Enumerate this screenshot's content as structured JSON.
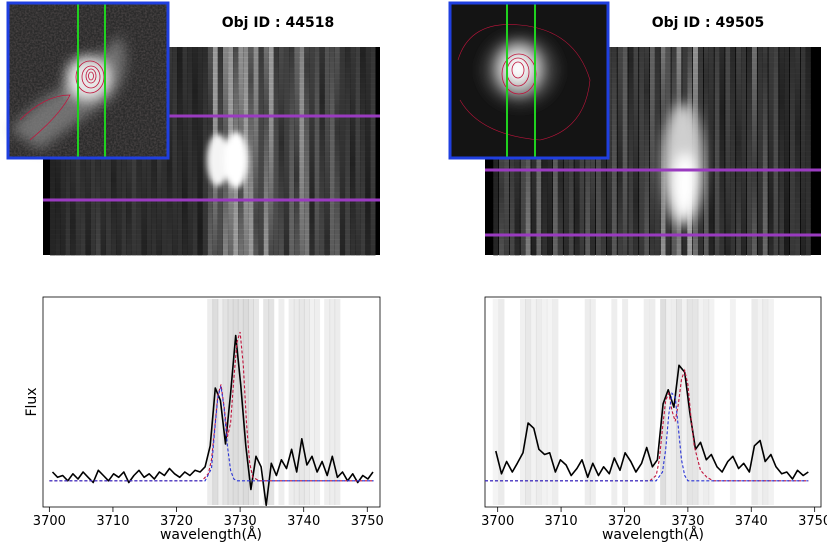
{
  "figure": {
    "ylabel": "Flux",
    "xlabel": "wavelength(Å)"
  },
  "colors": {
    "data_line": "#000000",
    "fit_total": "#c0143c",
    "fit_component": "#2b35d6",
    "aperture_lines": "#9a3bc0",
    "slit_lines": "#1fd11f",
    "inset_border": "#1f3fe0",
    "posterior_draws": "#b8b8b8"
  },
  "chart_data": [
    {
      "type": "line",
      "title": "Obj ID : 44518",
      "xlabel": "wavelength(Å)",
      "ylabel": "Flux",
      "xlim": [
        3699,
        3752
      ],
      "ylim": [
        -0.15,
        1.05
      ],
      "xticks": [
        3700,
        3710,
        3720,
        3730,
        3740,
        3750
      ],
      "grid": false,
      "series": [
        {
          "role": "data",
          "x": [
            3700.5,
            3701.3,
            3702.1,
            3702.9,
            3703.7,
            3704.5,
            3705.3,
            3706.1,
            3706.9,
            3707.7,
            3708.5,
            3709.3,
            3710.1,
            3710.9,
            3711.7,
            3712.5,
            3713.3,
            3714.1,
            3714.9,
            3715.7,
            3716.5,
            3717.3,
            3718.1,
            3718.9,
            3719.7,
            3720.5,
            3721.3,
            3722.1,
            3722.9,
            3723.7,
            3724.5,
            3725.3,
            3726.1,
            3726.9,
            3727.7,
            3728.5,
            3729.3,
            3730.1,
            3730.9,
            3731.7,
            3732.5,
            3733.3,
            3734.1,
            3734.9,
            3735.7,
            3736.5,
            3737.3,
            3738.1,
            3738.9,
            3739.7,
            3740.5,
            3741.3,
            3742.1,
            3742.9,
            3743.7,
            3744.5,
            3745.3,
            3746.1,
            3746.9,
            3747.7,
            3748.5,
            3749.3,
            3750.1,
            3750.9
          ],
          "y": [
            0.05,
            0.02,
            0.03,
            0.0,
            0.04,
            0.01,
            0.05,
            0.02,
            -0.01,
            0.06,
            0.03,
            0.0,
            0.04,
            0.02,
            0.05,
            -0.01,
            0.03,
            0.06,
            0.02,
            0.04,
            0.01,
            0.05,
            0.03,
            0.07,
            0.04,
            0.02,
            0.05,
            0.03,
            0.06,
            0.05,
            0.08,
            0.2,
            0.53,
            0.46,
            0.21,
            0.5,
            0.83,
            0.55,
            0.2,
            -0.05,
            0.14,
            0.08,
            -0.14,
            0.1,
            0.03,
            0.12,
            0.07,
            0.18,
            0.05,
            0.24,
            0.09,
            0.14,
            0.05,
            0.11,
            0.03,
            0.14,
            0.02,
            0.05,
            0.0,
            0.04,
            -0.01,
            0.03,
            0.01,
            0.05
          ]
        },
        {
          "role": "fit-total",
          "x": [
            3700,
            3724,
            3725,
            3725.5,
            3726,
            3726.5,
            3727,
            3727.5,
            3728,
            3728.5,
            3729,
            3729.5,
            3730,
            3730.5,
            3731,
            3731.5,
            3732,
            3733,
            3751
          ],
          "y": [
            0.0,
            0.0,
            0.04,
            0.12,
            0.3,
            0.49,
            0.55,
            0.42,
            0.25,
            0.33,
            0.58,
            0.79,
            0.85,
            0.66,
            0.33,
            0.1,
            0.02,
            0.0,
            0.0
          ]
        },
        {
          "role": "fit-component",
          "x": [
            3700,
            3724.5,
            3725.5,
            3726,
            3726.5,
            3727,
            3727.5,
            3728,
            3728.5,
            3729,
            3729.5,
            3730,
            3751
          ],
          "y": [
            0.0,
            0.0,
            0.07,
            0.29,
            0.48,
            0.54,
            0.41,
            0.2,
            0.06,
            0.01,
            0.0,
            0.0,
            0.0
          ]
        }
      ]
    },
    {
      "type": "line",
      "title": "Obj ID : 49505",
      "xlabel": "wavelength(Å)",
      "xlim": [
        3698,
        3751
      ],
      "ylim": [
        -0.15,
        1.05
      ],
      "xticks": [
        3700,
        3710,
        3720,
        3730,
        3740,
        3750
      ],
      "grid": false,
      "series": [
        {
          "role": "data",
          "x": [
            3699.7,
            3700.6,
            3701.4,
            3702.3,
            3703.1,
            3704.0,
            3704.8,
            3705.7,
            3706.5,
            3707.4,
            3708.2,
            3709.1,
            3709.9,
            3710.8,
            3711.6,
            3712.5,
            3713.3,
            3714.2,
            3715.0,
            3715.9,
            3716.7,
            3717.6,
            3718.4,
            3719.3,
            3720.1,
            3721.0,
            3721.8,
            3722.7,
            3723.5,
            3724.4,
            3725.2,
            3726.1,
            3726.9,
            3727.8,
            3728.6,
            3729.5,
            3730.3,
            3731.2,
            3732.0,
            3732.9,
            3733.7,
            3734.6,
            3735.4,
            3736.3,
            3737.1,
            3738.0,
            3738.8,
            3739.7,
            3740.5,
            3741.4,
            3742.2,
            3743.1,
            3743.9,
            3744.8,
            3745.6,
            3746.5,
            3747.3,
            3748.2,
            3749.0
          ],
          "y": [
            0.17,
            0.04,
            0.11,
            0.05,
            0.1,
            0.16,
            0.33,
            0.3,
            0.18,
            0.15,
            0.16,
            0.05,
            0.12,
            0.09,
            0.03,
            0.07,
            0.12,
            0.02,
            0.1,
            0.03,
            0.08,
            0.04,
            0.13,
            0.06,
            0.16,
            0.11,
            0.05,
            0.1,
            0.19,
            0.08,
            0.12,
            0.44,
            0.52,
            0.42,
            0.66,
            0.62,
            0.39,
            0.18,
            0.22,
            0.12,
            0.15,
            0.08,
            0.05,
            0.11,
            0.14,
            0.07,
            0.1,
            0.05,
            0.2,
            0.23,
            0.11,
            0.15,
            0.08,
            0.04,
            0.05,
            0.01,
            0.06,
            0.03,
            0.05
          ]
        },
        {
          "role": "fit-total",
          "x": [
            3698,
            3724,
            3725,
            3725.5,
            3726,
            3726.5,
            3727,
            3727.5,
            3728,
            3728.5,
            3729,
            3729.5,
            3730,
            3730.5,
            3731,
            3732,
            3733,
            3734,
            3749
          ],
          "y": [
            0.0,
            0.0,
            0.03,
            0.12,
            0.3,
            0.46,
            0.5,
            0.4,
            0.34,
            0.44,
            0.58,
            0.63,
            0.55,
            0.36,
            0.2,
            0.06,
            0.02,
            0.0,
            0.0
          ]
        },
        {
          "role": "fit-component",
          "x": [
            3698,
            3725,
            3726,
            3726.5,
            3727,
            3727.5,
            3728,
            3728.5,
            3729,
            3729.5,
            3730,
            3731,
            3749
          ],
          "y": [
            0.0,
            0.0,
            0.05,
            0.18,
            0.38,
            0.5,
            0.48,
            0.3,
            0.12,
            0.03,
            0.0,
            0.0,
            0.0
          ]
        }
      ]
    }
  ]
}
